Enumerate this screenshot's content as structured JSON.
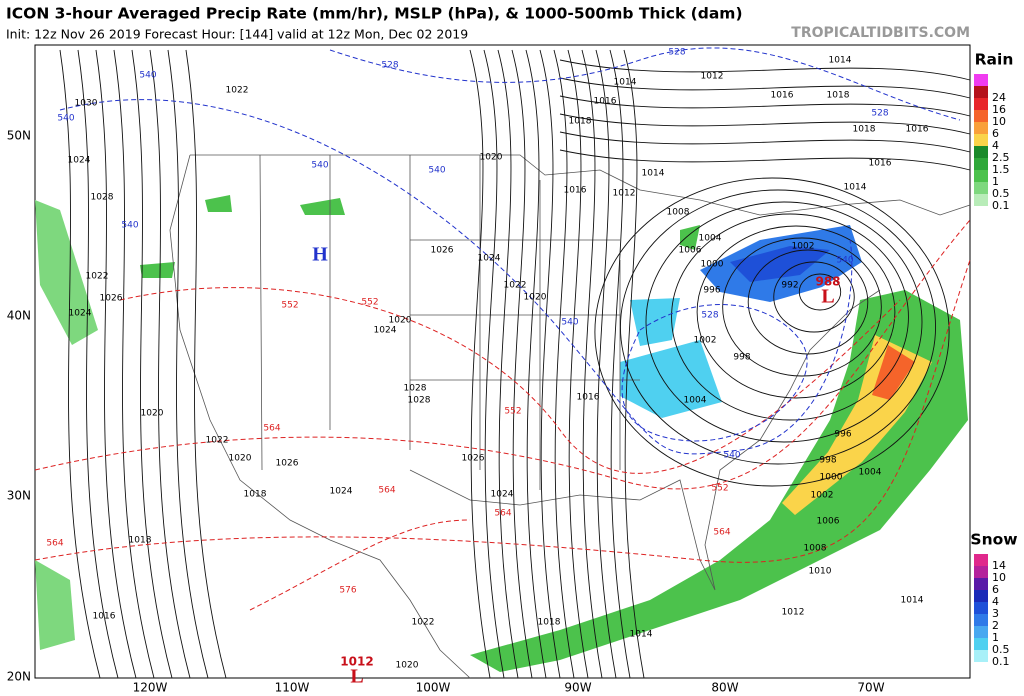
{
  "header": {
    "title": "ICON 3-hour Averaged Precip Rate (mm/hr), MSLP (hPa), & 1000-500mb Thick (dam)",
    "subtitle": "Init: 12z Nov 26 2019   Forecast Hour: [144]   valid at 12z Mon, Dec 02 2019",
    "site": "TROPICALTIDBITS.COM"
  },
  "map": {
    "lat_labels": [
      "50N",
      "40N",
      "30N",
      "20N"
    ],
    "lon_labels": [
      "120W",
      "110W",
      "100W",
      "90W",
      "80W",
      "70W"
    ],
    "isobar_labels": [
      "1022",
      "1014",
      "1012",
      "1014",
      "1016",
      "1018",
      "1020",
      "1016",
      "1012",
      "1014",
      "1008",
      "1006",
      "1004",
      "1002",
      "1000",
      "996",
      "992",
      "1002",
      "998",
      "1004",
      "1026",
      "1024",
      "1022",
      "1020",
      "1016",
      "1026",
      "1024",
      "1018",
      "1014",
      "1012",
      "1010",
      "1008",
      "1006",
      "1004",
      "1002",
      "1000",
      "998",
      "996",
      "1014",
      "1018",
      "1016",
      "1020",
      "1022",
      "1024",
      "1026",
      "1028",
      "1030",
      "1024",
      "1022",
      "1020",
      "1018",
      "1016",
      "1014",
      "1016",
      "1018",
      "1016",
      "1018",
      "1028",
      "1028",
      "1024",
      "1020",
      "1022",
      "1020",
      "1026",
      "1024"
    ],
    "thickness_labels": [
      "528",
      "528",
      "528",
      "540",
      "540",
      "540",
      "540",
      "540",
      "540",
      "528",
      "540",
      "552",
      "552",
      "552",
      "564",
      "564",
      "564",
      "564",
      "576",
      "552",
      "564",
      "540"
    ],
    "centers": [
      {
        "letter": "H"
      },
      {
        "letter": "L",
        "pressure": "988"
      },
      {
        "letter": "L",
        "pressure": "1012"
      }
    ]
  },
  "legend": {
    "rain": {
      "title": "Rain",
      "cap_color": "#f03cf0",
      "levels": [
        {
          "label": "24",
          "color": "#b5121b"
        },
        {
          "label": "16",
          "color": "#e8262a"
        },
        {
          "label": "10",
          "color": "#f5642a"
        },
        {
          "label": "6",
          "color": "#f9a03a"
        },
        {
          "label": "4",
          "color": "#fad44a"
        },
        {
          "label": "2.5",
          "color": "#1a8a2a"
        },
        {
          "label": "1.5",
          "color": "#2fa83a"
        },
        {
          "label": "1",
          "color": "#4cc24c"
        },
        {
          "label": "0.5",
          "color": "#7ed87e"
        },
        {
          "label": "0.1",
          "color": "#b8ecb8"
        }
      ]
    },
    "snow": {
      "title": "Snow",
      "levels": [
        {
          "label": "14",
          "color": "#e0288c"
        },
        {
          "label": "10",
          "color": "#b4219c"
        },
        {
          "label": "6",
          "color": "#5a1aa8"
        },
        {
          "label": "4",
          "color": "#1a2ab8"
        },
        {
          "label": "3",
          "color": "#1e50d8"
        },
        {
          "label": "2",
          "color": "#2f7ae8"
        },
        {
          "label": "1",
          "color": "#48a8f0"
        },
        {
          "label": "0.5",
          "color": "#4fd0f0"
        },
        {
          "label": "0.1",
          "color": "#a8f0f8"
        }
      ]
    }
  }
}
